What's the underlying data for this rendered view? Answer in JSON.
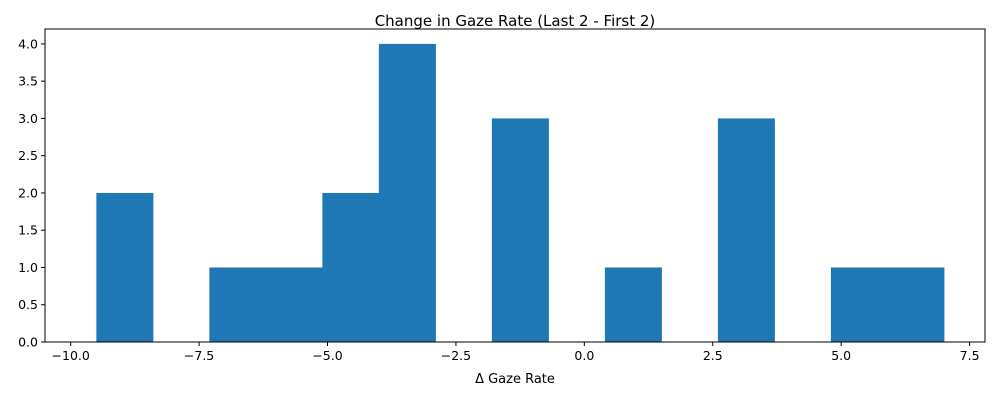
{
  "chart_data": {
    "type": "bar",
    "title": "Change in Gaze Rate (Last 2 - First 2)",
    "xlabel": "Δ Gaze Rate",
    "ylabel": "",
    "xlim": [
      -10.5,
      7.8
    ],
    "ylim": [
      0,
      4.2
    ],
    "x_ticks": [
      -10.0,
      -7.5,
      -5.0,
      -2.5,
      0.0,
      2.5,
      5.0,
      7.5
    ],
    "x_tick_labels": [
      "−10.0",
      "−7.5",
      "−5.0",
      "−2.5",
      "0.0",
      "2.5",
      "5.0",
      "7.5"
    ],
    "y_ticks": [
      0.0,
      0.5,
      1.0,
      1.5,
      2.0,
      2.5,
      3.0,
      3.5,
      4.0
    ],
    "y_tick_labels": [
      "0.0",
      "0.5",
      "1.0",
      "1.5",
      "2.0",
      "2.5",
      "3.0",
      "3.5",
      "4.0"
    ],
    "bins": [
      {
        "start": -9.5,
        "end": -8.4,
        "count": 2
      },
      {
        "start": -8.4,
        "end": -7.3,
        "count": 0
      },
      {
        "start": -7.3,
        "end": -6.2,
        "count": 1
      },
      {
        "start": -6.2,
        "end": -5.1,
        "count": 1
      },
      {
        "start": -5.1,
        "end": -4.0,
        "count": 2
      },
      {
        "start": -4.0,
        "end": -2.9,
        "count": 4
      },
      {
        "start": -2.9,
        "end": -1.8,
        "count": 0
      },
      {
        "start": -1.8,
        "end": -0.7,
        "count": 3
      },
      {
        "start": -0.7,
        "end": 0.4,
        "count": 0
      },
      {
        "start": 0.4,
        "end": 1.5,
        "count": 1
      },
      {
        "start": 1.5,
        "end": 2.6,
        "count": 0
      },
      {
        "start": 2.6,
        "end": 3.7,
        "count": 3
      },
      {
        "start": 3.7,
        "end": 4.8,
        "count": 0
      },
      {
        "start": 4.8,
        "end": 5.9,
        "count": 1
      },
      {
        "start": 5.9,
        "end": 7.0,
        "count": 1
      }
    ],
    "bar_color": "#1f77b4",
    "grid": false,
    "legend": "none"
  }
}
